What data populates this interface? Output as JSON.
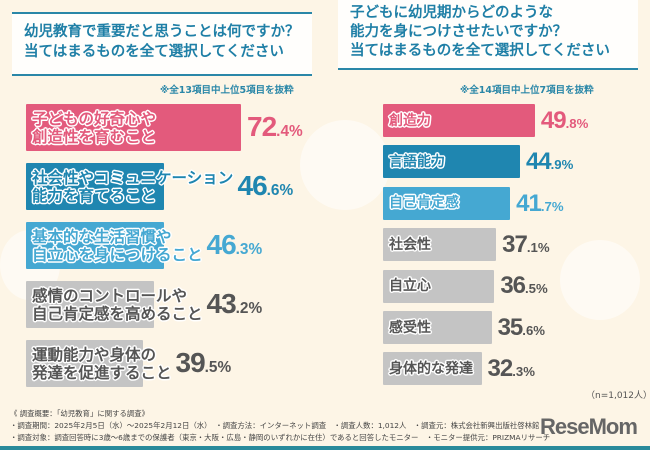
{
  "chart_data": [
    {
      "type": "bar",
      "orientation": "horizontal",
      "title": "幼児教育で重要だと思うことは何ですか？\n当てはまるものを全て選択してください",
      "note": "※全13項目中上位5項目を抜粋",
      "unit": "%",
      "categories": [
        "子どもの好奇心や\n創造性を育むこと",
        "社会性やコミュニケーション\n能力を育てること",
        "基本的な生活習慣や\n自立心を身につけること",
        "感情のコントロールや\n自己肯定感を高めること",
        "運動能力や身体の\n発達を促進すること"
      ],
      "values": [
        72.4,
        46.6,
        46.3,
        43.2,
        39.5
      ],
      "colors": [
        "#e35a7c",
        "#1f86b0",
        "#45a8d2",
        "#c4c4c4",
        "#c4c4c4"
      ],
      "value_colors": [
        "#e35a7c",
        "#1f86b0",
        "#45a8d2",
        "#555555",
        "#555555"
      ]
    },
    {
      "type": "bar",
      "orientation": "horizontal",
      "title": "子どもに幼児期からどのような\n能力を身につけさせたいですか？\n当てはまるものを全て選択してください",
      "note": "※全14項目中上位7項目を抜粋",
      "unit": "%",
      "categories": [
        "創造力",
        "言語能力",
        "自己肯定感",
        "社会性",
        "自立心",
        "感受性",
        "身体的な発達"
      ],
      "values": [
        49.8,
        44.9,
        41.7,
        37.1,
        36.5,
        35.6,
        32.3
      ],
      "colors": [
        "#e35a7c",
        "#1f86b0",
        "#45a8d2",
        "#c4c4c4",
        "#c4c4c4",
        "#c4c4c4",
        "#c4c4c4"
      ],
      "value_colors": [
        "#e35a7c",
        "#1f86b0",
        "#45a8d2",
        "#555555",
        "#555555",
        "#555555",
        "#555555"
      ],
      "sample": "（n=1,012人）"
    }
  ],
  "footer": {
    "lines": [
      "《 調査概要：「幼児教育」に関する調査》",
      "・調査期間：2025年2月5日（水）～2025年2月12日（水）　・調査方法：インターネット調査　・調査人数：1,012人　・調査元：株式会社新興出版社啓林館",
      "・調査対象：調査回答時に3歳～6歳までの保護者（東京・大阪・広島・静岡のいずれかに在住）であると回答したモニター　・モニター提供元：PRIZMAリサーチ"
    ]
  },
  "logo": "ReseMom"
}
